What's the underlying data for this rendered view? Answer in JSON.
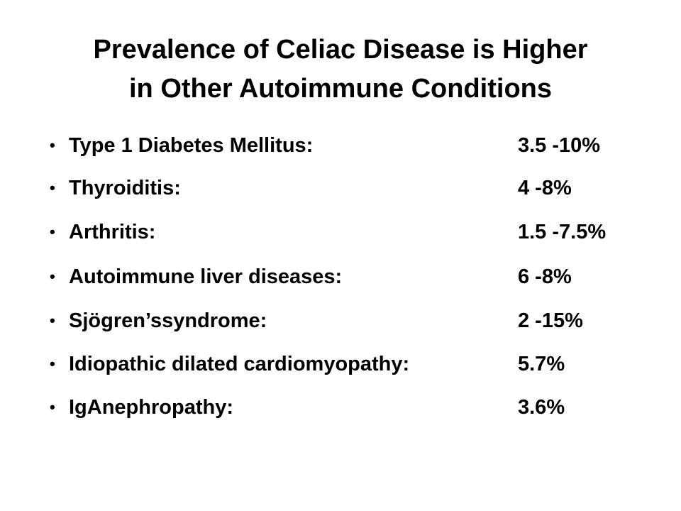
{
  "header": {
    "title_lines": [
      "Prevalence of Celiac Disease is Higher",
      "in Other Autoimmune Conditions"
    ]
  },
  "list": {
    "items": [
      {
        "label": "Type 1 Diabetes Mellitus:",
        "value": "3.5 -10%"
      },
      {
        "label": "Thyroiditis:",
        "value": "4 -8%"
      },
      {
        "label": "Arthritis:",
        "value": "1.5 -7.5%"
      },
      {
        "label": "Autoimmune liver diseases:",
        "value": "6 -8%"
      },
      {
        "label": "Sjögren’ssyndrome:",
        "value": "2 -15%"
      },
      {
        "label": "Idiopathic dilated cardiomyopathy:",
        "value": "5.7%"
      },
      {
        "label": "IgAnephropathy:",
        "value": "3.6%"
      }
    ]
  }
}
